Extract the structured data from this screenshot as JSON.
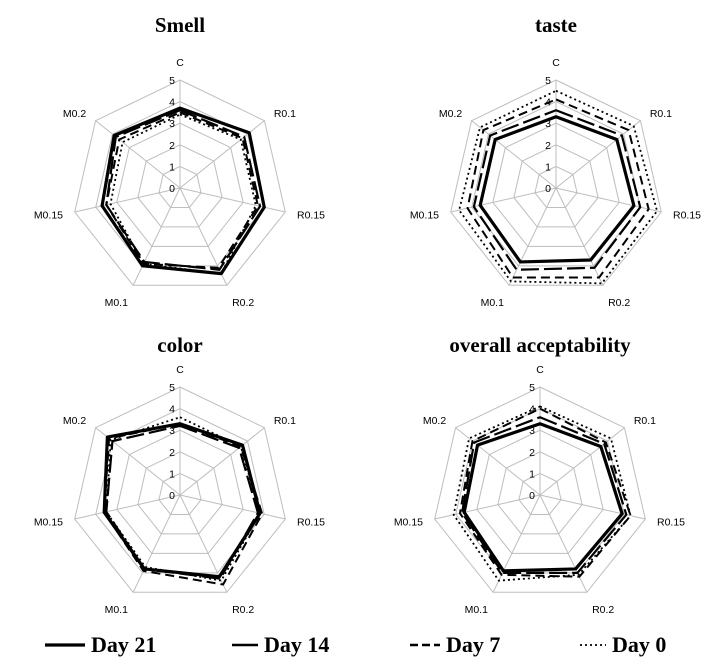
{
  "chart_data": [
    {
      "type": "radar",
      "title": "Smell",
      "axes": [
        "C",
        "R0.1",
        "R0.15",
        "R0.2",
        "M0.1",
        "M0.15",
        "M0.2"
      ],
      "ticks": [
        "0",
        "1",
        "2",
        "3",
        "4",
        "5"
      ],
      "rlim": [
        0,
        5
      ],
      "series": [
        {
          "name": "Day 21",
          "values": [
            3.7,
            4.1,
            4.0,
            4.4,
            4.0,
            3.7,
            3.9
          ]
        },
        {
          "name": "Day 14",
          "values": [
            3.6,
            3.8,
            3.8,
            4.2,
            3.8,
            3.5,
            3.8
          ]
        },
        {
          "name": "Day 7",
          "values": [
            3.5,
            3.7,
            3.7,
            4.1,
            3.9,
            3.5,
            3.6
          ]
        },
        {
          "name": "Day 0",
          "values": [
            3.4,
            3.6,
            3.6,
            4.4,
            3.9,
            3.3,
            3.4
          ]
        }
      ]
    },
    {
      "type": "radar",
      "title": "taste",
      "axes": [
        "C",
        "R0.1",
        "R0.15",
        "R0.2",
        "M0.1",
        "M0.15",
        "M0.2"
      ],
      "ticks": [
        "0",
        "1",
        "2",
        "3",
        "4",
        "5"
      ],
      "rlim": [
        0,
        5
      ],
      "series": [
        {
          "name": "Day 21",
          "values": [
            3.3,
            3.6,
            3.7,
            3.7,
            3.8,
            3.6,
            3.6
          ]
        },
        {
          "name": "Day 14",
          "values": [
            3.6,
            3.9,
            4.0,
            4.1,
            4.2,
            3.9,
            3.9
          ]
        },
        {
          "name": "Day 7",
          "values": [
            4.1,
            4.3,
            4.4,
            4.6,
            4.6,
            4.2,
            4.3
          ]
        },
        {
          "name": "Day 0",
          "values": [
            4.5,
            4.6,
            4.8,
            4.9,
            4.8,
            4.6,
            4.5
          ]
        }
      ]
    },
    {
      "type": "radar",
      "title": "color",
      "axes": [
        "C",
        "R0.1",
        "R0.15",
        "R0.2",
        "M0.1",
        "M0.15",
        "M0.2"
      ],
      "ticks": [
        "0",
        "1",
        "2",
        "3",
        "4",
        "5"
      ],
      "rlim": [
        0,
        5
      ],
      "series": [
        {
          "name": "Day 21",
          "values": [
            3.3,
            3.7,
            3.8,
            4.2,
            3.8,
            3.6,
            4.3
          ]
        },
        {
          "name": "Day 14",
          "values": [
            3.2,
            3.5,
            3.7,
            4.3,
            3.8,
            3.5,
            4.0
          ]
        },
        {
          "name": "Day 7",
          "values": [
            3.3,
            3.6,
            3.9,
            4.6,
            3.9,
            3.6,
            4.2
          ]
        },
        {
          "name": "Day 0",
          "values": [
            3.6,
            3.6,
            3.8,
            4.4,
            3.7,
            3.5,
            4.1
          ]
        }
      ]
    },
    {
      "type": "radar",
      "title": "overall acceptability",
      "axes": [
        "C",
        "R0.1",
        "R0.15",
        "R0.2",
        "M0.1",
        "M0.15",
        "M0.2"
      ],
      "ticks": [
        "0",
        "1",
        "2",
        "3",
        "4",
        "5"
      ],
      "rlim": [
        0,
        5
      ],
      "series": [
        {
          "name": "Day 21",
          "values": [
            3.3,
            3.6,
            3.9,
            3.8,
            3.9,
            3.6,
            3.7
          ]
        },
        {
          "name": "Day 14",
          "values": [
            3.6,
            3.8,
            4.1,
            4.0,
            4.0,
            3.7,
            3.9
          ]
        },
        {
          "name": "Day 7",
          "values": [
            4.0,
            3.9,
            4.3,
            4.2,
            4.1,
            3.8,
            4.0
          ]
        },
        {
          "name": "Day 0",
          "values": [
            4.1,
            4.2,
            4.3,
            4.1,
            4.4,
            4.1,
            4.2
          ]
        }
      ]
    }
  ],
  "legend": [
    {
      "label": "Day 21",
      "dash": "solid",
      "weight": "heavy"
    },
    {
      "label": "Day 14",
      "dash": "solid",
      "weight": "medium"
    },
    {
      "label": "Day 7",
      "dash": "dashed",
      "weight": "medium"
    },
    {
      "label": "Day 0",
      "dash": "dotted",
      "weight": "light"
    }
  ],
  "legend_position": "bottom"
}
